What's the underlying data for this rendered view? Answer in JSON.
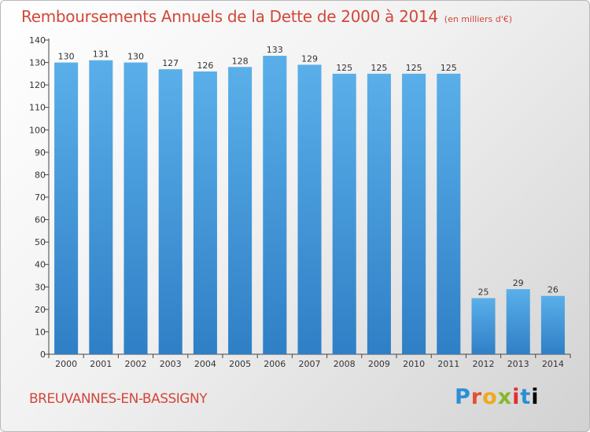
{
  "header": {
    "title": "Remboursements Annuels de la Dette de 2000 à 2014",
    "unit": "(en milliers d'€)"
  },
  "footer": {
    "commune": "BREUVANNES-EN-BASSIGNY",
    "brand": "Proxiti"
  },
  "colors": {
    "title": "#d2473a",
    "bar_top": "#5aafe9",
    "bar_bottom": "#2f7fc6"
  },
  "chart_data": {
    "type": "bar",
    "title": "Remboursements Annuels de la Dette de 2000 à 2014",
    "xlabel": "",
    "ylabel": "",
    "categories": [
      "2000",
      "2001",
      "2002",
      "2003",
      "2004",
      "2005",
      "2006",
      "2007",
      "2008",
      "2009",
      "2010",
      "2011",
      "2012",
      "2013",
      "2014"
    ],
    "values": [
      130,
      131,
      130,
      127,
      126,
      128,
      133,
      129,
      125,
      125,
      125,
      125,
      25,
      29,
      26
    ],
    "ylim": [
      0,
      140
    ],
    "yticks": [
      0,
      10,
      20,
      30,
      40,
      50,
      60,
      70,
      80,
      90,
      100,
      110,
      120,
      130,
      140
    ],
    "grid": false,
    "data_labels": true
  }
}
